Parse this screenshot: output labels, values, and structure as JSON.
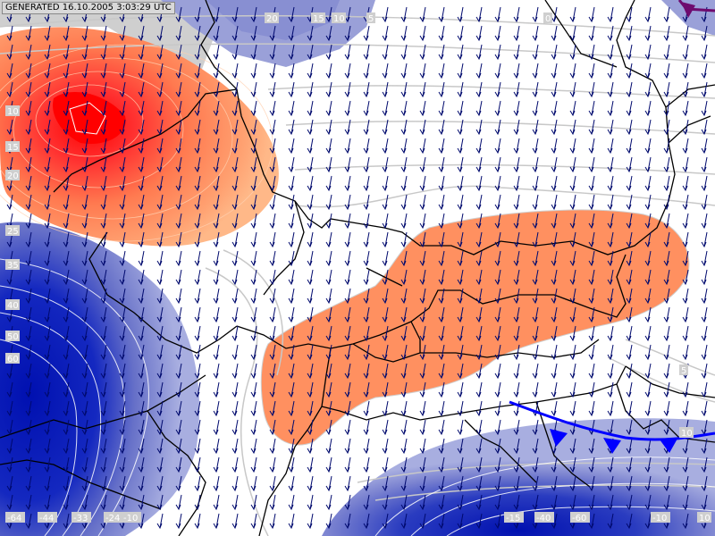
{
  "generated_label": "GENERATED 16.10.2005 3:03:29 UTC",
  "isoline_labels": {
    "top": [
      "20",
      "15",
      "10",
      "5",
      "0"
    ],
    "left_upper": [
      "10",
      "15",
      "20",
      "25",
      "35",
      "40",
      "50",
      "60"
    ],
    "right": [
      "5",
      "10"
    ],
    "bottom_left": [
      "-64",
      "-44",
      "-33",
      "-24",
      "-10"
    ],
    "bottom_right": [
      "-15",
      "-40",
      "-60",
      "-10",
      "10"
    ]
  },
  "colors": {
    "warm_core": "#ff0000",
    "warm_mid": "#ff8c5a",
    "warm_outer": "#ffb37d",
    "cold_core": "#0014b4",
    "cold_mid": "#5a64c8",
    "cold_outer": "#9aa0d8",
    "wind_arrows": "#000a6e",
    "borders": "#000000",
    "isolines": "#c8c8c8",
    "cold_front": "#0000ff",
    "occluded_front": "#6e0a6e"
  }
}
